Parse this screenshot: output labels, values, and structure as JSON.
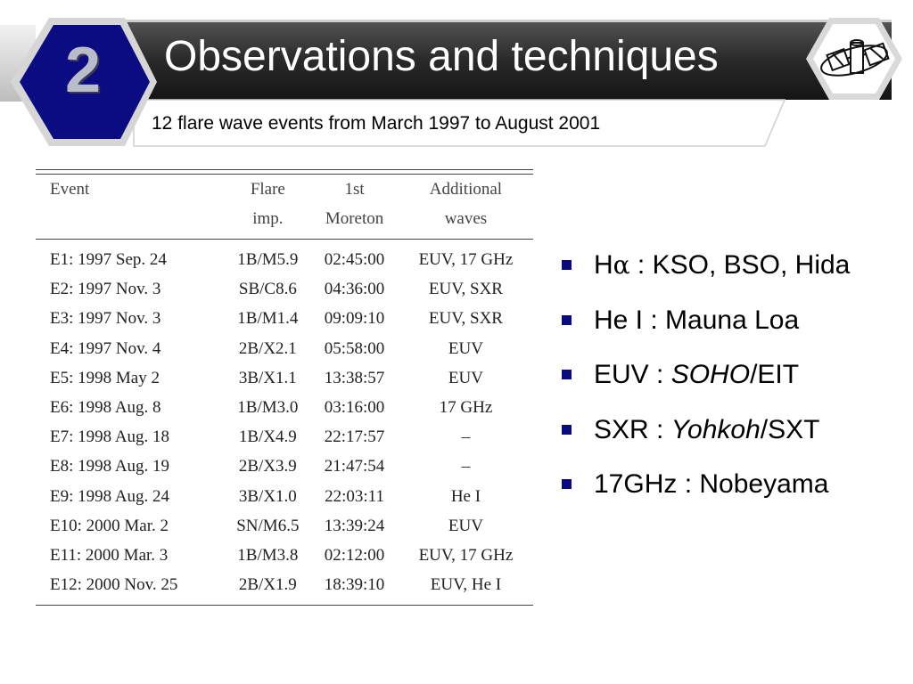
{
  "header": {
    "section_number": "2",
    "title": "Observations and techniques",
    "subtitle": "12 flare wave events from March 1997 to August 2001",
    "logo_icon": "satellite-icon"
  },
  "table": {
    "headers": {
      "event": [
        "Event",
        ""
      ],
      "flare": [
        "Flare",
        "imp."
      ],
      "moreton": [
        "1st",
        "Moreton"
      ],
      "additional": [
        "Additional",
        "waves"
      ]
    },
    "rows": [
      {
        "event": "E1: 1997 Sep. 24",
        "flare": "1B/M5.9",
        "moreton": "02:45:00",
        "additional": "EUV, 17 GHz"
      },
      {
        "event": "E2: 1997 Nov. 3",
        "flare": "SB/C8.6",
        "moreton": "04:36:00",
        "additional": "EUV, SXR"
      },
      {
        "event": "E3: 1997 Nov. 3",
        "flare": "1B/M1.4",
        "moreton": "09:09:10",
        "additional": "EUV, SXR"
      },
      {
        "event": "E4: 1997 Nov. 4",
        "flare": "2B/X2.1",
        "moreton": "05:58:00",
        "additional": "EUV"
      },
      {
        "event": "E5: 1998 May 2",
        "flare": "3B/X1.1",
        "moreton": "13:38:57",
        "additional": "EUV"
      },
      {
        "event": "E6: 1998 Aug. 8",
        "flare": "1B/M3.0",
        "moreton": "03:16:00",
        "additional": "17 GHz"
      },
      {
        "event": "E7: 1998 Aug. 18",
        "flare": "1B/X4.9",
        "moreton": "22:17:57",
        "additional": "–"
      },
      {
        "event": "E8: 1998 Aug. 19",
        "flare": "2B/X3.9",
        "moreton": "21:47:54",
        "additional": "–"
      },
      {
        "event": "E9: 1998 Aug. 24",
        "flare": "3B/X1.0",
        "moreton": "22:03:11",
        "additional": "He I"
      },
      {
        "event": "E10: 2000 Mar. 2",
        "flare": "SN/M6.5",
        "moreton": "13:39:24",
        "additional": "EUV"
      },
      {
        "event": "E11: 2000 Mar. 3",
        "flare": "1B/M3.8",
        "moreton": "02:12:00",
        "additional": "EUV, 17 GHz"
      },
      {
        "event": "E12: 2000 Nov. 25",
        "flare": "2B/X1.9",
        "moreton": "18:39:10",
        "additional": "EUV, He I"
      }
    ]
  },
  "observations": [
    {
      "prefix": "H",
      "symbol": "α",
      "normal": " : KSO, BSO, Hida",
      "italic": "",
      "suffix": ""
    },
    {
      "prefix": "He I : Mauna Loa",
      "symbol": "",
      "normal": "",
      "italic": "",
      "suffix": ""
    },
    {
      "prefix": "EUV : ",
      "symbol": "",
      "normal": "",
      "italic": "SOHO",
      "suffix": "/EIT"
    },
    {
      "prefix": "SXR : ",
      "symbol": "",
      "normal": "",
      "italic": "Yohkoh",
      "suffix": "/SXT"
    },
    {
      "prefix": "17GHz : Nobeyama",
      "symbol": "",
      "normal": "",
      "italic": "",
      "suffix": ""
    }
  ],
  "colors": {
    "title_bar": "#2e2e2e",
    "badge": "#0b0b82",
    "bullet": "#0a0a80"
  }
}
